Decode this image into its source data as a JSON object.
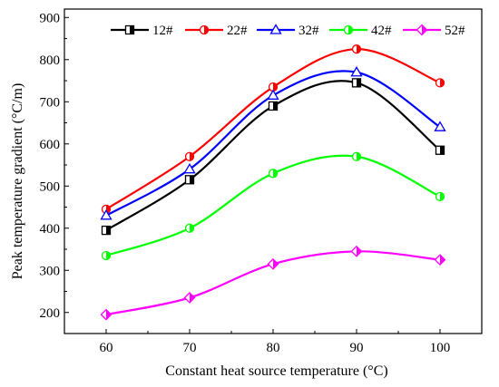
{
  "chart_data": {
    "type": "line",
    "xlabel": "Constant heat source temperature (°C)",
    "ylabel": "Peak temperature gradient (°C/m)",
    "x": [
      60,
      70,
      80,
      90,
      100
    ],
    "x_ticks": [
      "60",
      "70",
      "80",
      "90",
      "100"
    ],
    "y_ticks": [
      "200",
      "300",
      "400",
      "500",
      "600",
      "700",
      "800",
      "900"
    ],
    "xlim": [
      55,
      105
    ],
    "ylim": [
      150,
      920
    ],
    "grid": false,
    "smooth": true,
    "legend_position": "top",
    "series": [
      {
        "name": "12#",
        "color": "#000000",
        "marker": "square-half",
        "values": [
          395,
          515,
          690,
          745,
          585
        ]
      },
      {
        "name": "22#",
        "color": "#ff0000",
        "marker": "circle-half",
        "values": [
          445,
          570,
          735,
          825,
          745
        ]
      },
      {
        "name": "32#",
        "color": "#0000ff",
        "marker": "triangle",
        "values": [
          430,
          540,
          715,
          770,
          640
        ]
      },
      {
        "name": "42#",
        "color": "#00ff00",
        "marker": "circle-half",
        "values": [
          335,
          400,
          530,
          570,
          475
        ]
      },
      {
        "name": "52#",
        "color": "#ff00ff",
        "marker": "diamond-half",
        "values": [
          195,
          235,
          315,
          345,
          325
        ]
      }
    ]
  }
}
